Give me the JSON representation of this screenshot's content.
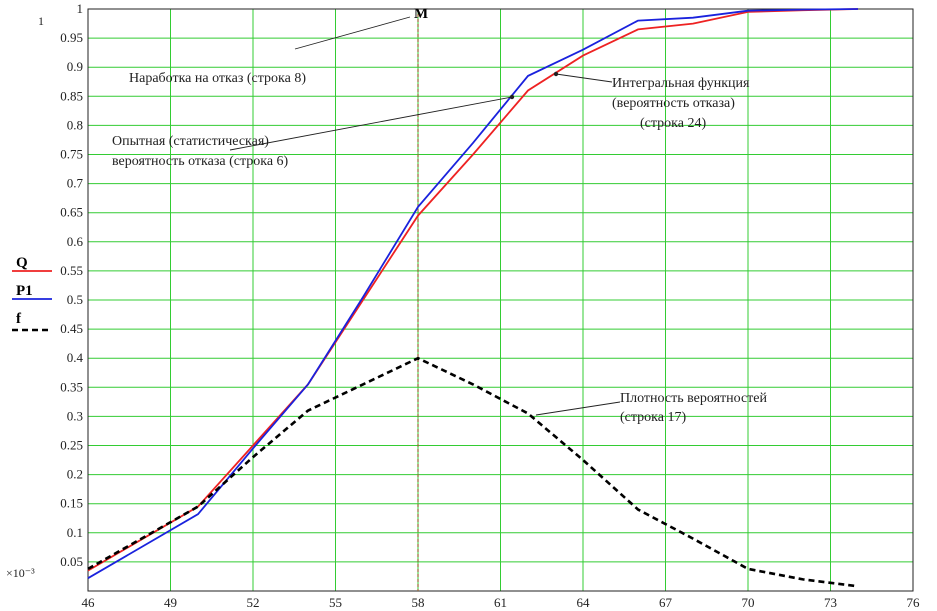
{
  "chart_data": {
    "type": "line",
    "xlim": [
      46,
      76
    ],
    "ylim": [
      0,
      1
    ],
    "xticks": [
      46,
      49,
      52,
      55,
      58,
      61,
      64,
      67,
      70,
      73,
      76
    ],
    "yticks": [
      0.05,
      0.1,
      0.15,
      0.2,
      0.25,
      0.3,
      0.35,
      0.4,
      0.45,
      0.5,
      0.55,
      0.6,
      0.65,
      0.7,
      0.75,
      0.8,
      0.85,
      0.9,
      0.95,
      1
    ],
    "ytick_labels": [
      "0.05",
      "0.1",
      "0.15",
      "0.2",
      "0.25",
      "0.3",
      "0.35",
      "0.4",
      "0.45",
      "0.5",
      "0.55",
      "0.6",
      "0.65",
      "0.7",
      "0.75",
      "0.8",
      "0.85",
      "0.9",
      "0.95",
      "1"
    ],
    "grid": true,
    "series": [
      {
        "name": "Q",
        "color": "#ee2222",
        "style": "solid",
        "x": [
          46,
          50,
          52,
          54,
          56,
          58,
          60,
          62,
          64,
          66,
          68,
          70,
          72,
          74
        ],
        "y": [
          0.035,
          0.145,
          0.25,
          0.355,
          0.5,
          0.645,
          0.75,
          0.86,
          0.92,
          0.965,
          0.975,
          0.995,
          0.998,
          1.0
        ]
      },
      {
        "name": "P1",
        "color": "#1a22dd",
        "style": "solid",
        "x": [
          46,
          50,
          52,
          54,
          56,
          58,
          60,
          62,
          64,
          66,
          68,
          70,
          72,
          74
        ],
        "y": [
          0.022,
          0.132,
          0.245,
          0.355,
          0.505,
          0.66,
          0.77,
          0.885,
          0.93,
          0.98,
          0.985,
          0.997,
          0.999,
          1.0
        ]
      },
      {
        "name": "f",
        "color": "#000000",
        "style": "dashed",
        "x": [
          46,
          50,
          52,
          54,
          56,
          58,
          60,
          62,
          64,
          66,
          68,
          70,
          72,
          74
        ],
        "y": [
          0.038,
          0.145,
          0.23,
          0.31,
          0.355,
          0.4,
          0.355,
          0.305,
          0.225,
          0.14,
          0.09,
          0.038,
          0.02,
          0.008
        ]
      }
    ],
    "legend": [
      "Q",
      "P1",
      "f"
    ],
    "mean_marker": {
      "x": 58,
      "label": "M"
    },
    "corner_top_left": "1",
    "corner_bottom_left": "×10⁻³",
    "annotations": {
      "mtbf": "Наработка на отказ (строка 8)",
      "empirical_1": "Опытная (статистическая)",
      "empirical_2": "вероятность отказа (строка 6)",
      "integral_1": "Интегральная функция",
      "integral_2": "(вероятность отказа)",
      "integral_3": "(строка 24)",
      "density_1": "Плотность вероятностей",
      "density_2": "(строка 17)"
    }
  }
}
